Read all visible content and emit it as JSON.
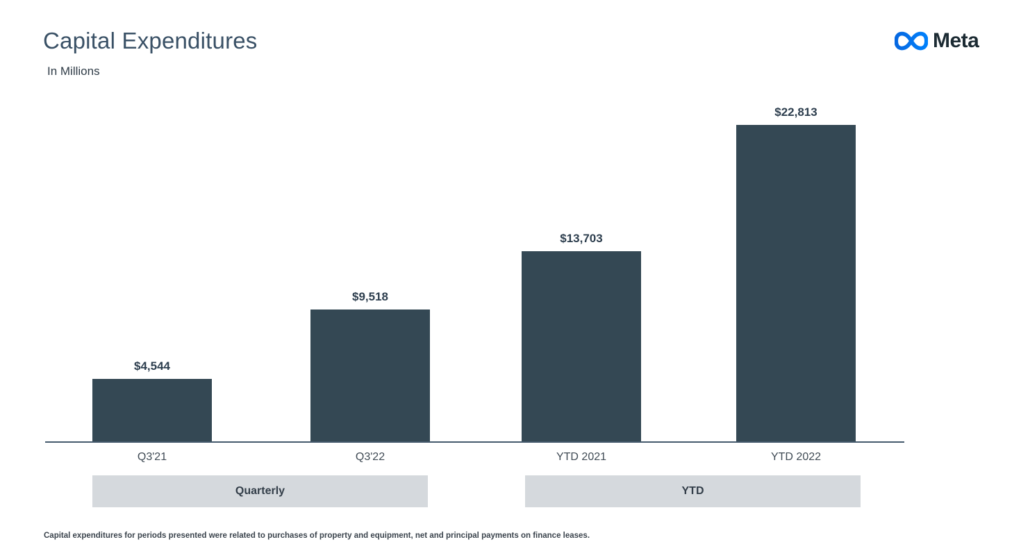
{
  "header": {
    "title": "Capital Expenditures",
    "subtitle": "In Millions",
    "brand": {
      "logo_icon": "meta-infinity-icon",
      "wordmark": "Meta"
    }
  },
  "chart_data": {
    "type": "bar",
    "title": "Capital Expenditures",
    "units": "USD millions",
    "categories": [
      "Q3'21",
      "Q3'22",
      "YTD 2021",
      "YTD 2022"
    ],
    "values": [
      4544,
      9518,
      13703,
      22813
    ],
    "value_labels": [
      "$4,544",
      "$9,518",
      "$13,703",
      "$22,813"
    ],
    "groups": [
      {
        "label": "Quarterly",
        "categories": [
          "Q3'21",
          "Q3'22"
        ]
      },
      {
        "label": "YTD",
        "categories": [
          "YTD 2021",
          "YTD 2022"
        ]
      }
    ],
    "ylim": [
      0,
      22813
    ],
    "grid": false,
    "legend": false,
    "orientation": "vertical",
    "bar_color": "#344854"
  },
  "footnote": "Capital expenditures for periods presented were related to purchases of property and equipment, net and principal payments on finance leases.",
  "colors": {
    "bar": "#344854",
    "group_banner_background": "#d5d9dd",
    "title_text": "#3a5166",
    "value_label_text": "#2d3e4e",
    "axis_line": "#44596c",
    "meta_gradient_start": "#0668E1",
    "meta_gradient_end": "#0080FB",
    "wordmark_text": "#1c2b33"
  }
}
